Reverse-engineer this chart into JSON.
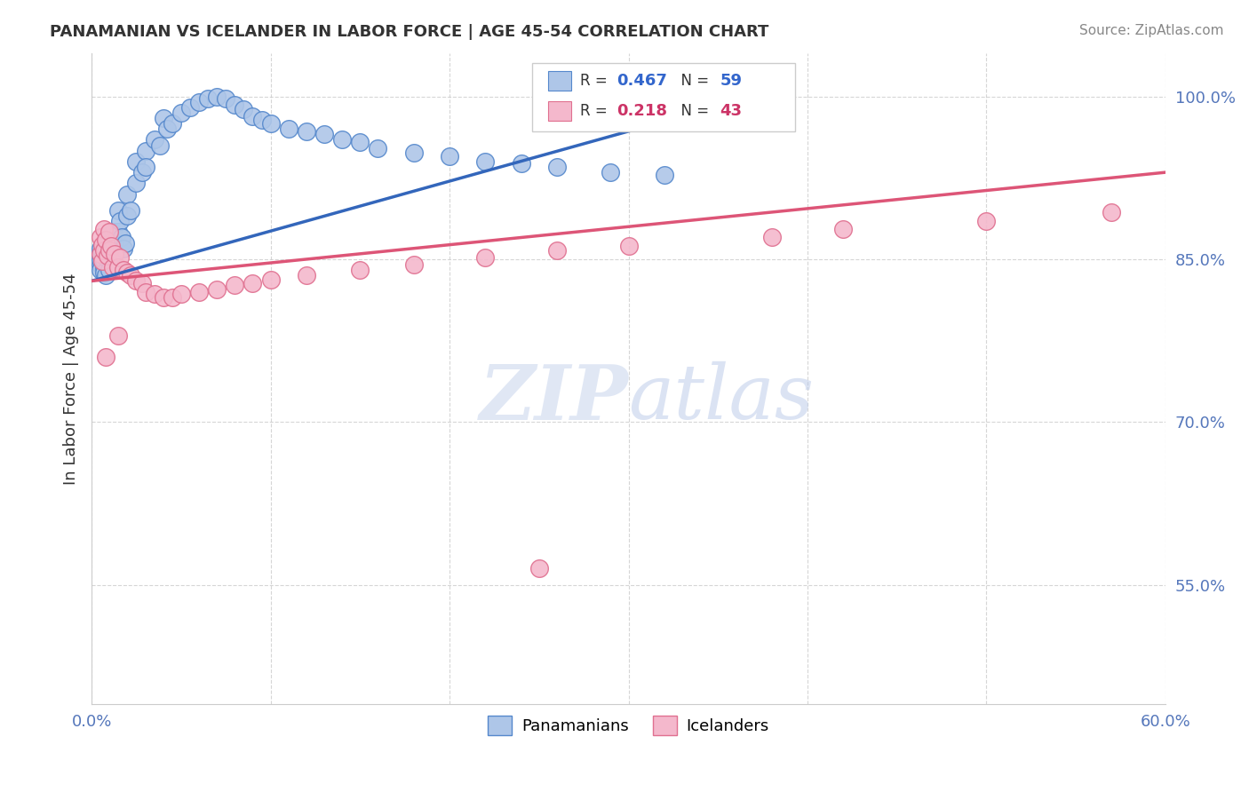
{
  "title": "PANAMANIAN VS ICELANDER IN LABOR FORCE | AGE 45-54 CORRELATION CHART",
  "source": "Source: ZipAtlas.com",
  "ylabel": "In Labor Force | Age 45-54",
  "xlim": [
    0.0,
    0.6
  ],
  "ylim": [
    0.44,
    1.04
  ],
  "xticks": [
    0.0,
    0.1,
    0.2,
    0.3,
    0.4,
    0.5,
    0.6
  ],
  "xticklabels": [
    "0.0%",
    "",
    "",
    "",
    "",
    "",
    "60.0%"
  ],
  "yticks": [
    0.55,
    0.7,
    0.85,
    1.0
  ],
  "yticklabels": [
    "55.0%",
    "70.0%",
    "85.0%",
    "100.0%"
  ],
  "R_blue": 0.467,
  "N_blue": 59,
  "R_pink": 0.218,
  "N_pink": 43,
  "blue_color": "#aec6e8",
  "blue_edge": "#5588cc",
  "pink_color": "#f4b8cc",
  "pink_edge": "#e07090",
  "trend_blue": "#3366bb",
  "trend_pink": "#dd5577",
  "blue_scatter_x": [
    0.005,
    0.005,
    0.005,
    0.005,
    0.005,
    0.007,
    0.007,
    0.007,
    0.008,
    0.008,
    0.01,
    0.01,
    0.01,
    0.012,
    0.012,
    0.013,
    0.015,
    0.015,
    0.016,
    0.017,
    0.018,
    0.019,
    0.02,
    0.02,
    0.022,
    0.025,
    0.025,
    0.028,
    0.03,
    0.03,
    0.035,
    0.038,
    0.04,
    0.042,
    0.045,
    0.05,
    0.055,
    0.06,
    0.065,
    0.07,
    0.075,
    0.08,
    0.085,
    0.09,
    0.095,
    0.1,
    0.11,
    0.12,
    0.13,
    0.14,
    0.15,
    0.16,
    0.18,
    0.2,
    0.22,
    0.24,
    0.26,
    0.29,
    0.32
  ],
  "blue_scatter_y": [
    0.845,
    0.85,
    0.855,
    0.86,
    0.84,
    0.843,
    0.848,
    0.838,
    0.852,
    0.835,
    0.87,
    0.86,
    0.84,
    0.875,
    0.855,
    0.865,
    0.895,
    0.875,
    0.885,
    0.87,
    0.86,
    0.865,
    0.91,
    0.89,
    0.895,
    0.94,
    0.92,
    0.93,
    0.95,
    0.935,
    0.96,
    0.955,
    0.98,
    0.97,
    0.975,
    0.985,
    0.99,
    0.995,
    0.998,
    1.0,
    0.998,
    0.992,
    0.988,
    0.982,
    0.978,
    0.975,
    0.97,
    0.968,
    0.965,
    0.96,
    0.958,
    0.952,
    0.948,
    0.945,
    0.94,
    0.938,
    0.935,
    0.93,
    0.928
  ],
  "pink_scatter_x": [
    0.005,
    0.005,
    0.006,
    0.006,
    0.007,
    0.007,
    0.008,
    0.009,
    0.01,
    0.01,
    0.011,
    0.012,
    0.013,
    0.015,
    0.016,
    0.018,
    0.02,
    0.022,
    0.025,
    0.028,
    0.03,
    0.035,
    0.04,
    0.045,
    0.05,
    0.06,
    0.07,
    0.08,
    0.09,
    0.1,
    0.12,
    0.15,
    0.18,
    0.22,
    0.26,
    0.3,
    0.38,
    0.42,
    0.5,
    0.57,
    0.008,
    0.015,
    0.25
  ],
  "pink_scatter_y": [
    0.87,
    0.855,
    0.863,
    0.848,
    0.878,
    0.858,
    0.868,
    0.853,
    0.875,
    0.858,
    0.862,
    0.843,
    0.855,
    0.843,
    0.852,
    0.84,
    0.838,
    0.835,
    0.83,
    0.828,
    0.82,
    0.818,
    0.815,
    0.815,
    0.818,
    0.82,
    0.822,
    0.826,
    0.828,
    0.831,
    0.835,
    0.84,
    0.845,
    0.852,
    0.858,
    0.862,
    0.87,
    0.878,
    0.885,
    0.893,
    0.76,
    0.78,
    0.565
  ],
  "watermark_zip": "ZIP",
  "watermark_atlas": "atlas",
  "legend_blue_label": "Panamanians",
  "legend_pink_label": "Icelanders"
}
